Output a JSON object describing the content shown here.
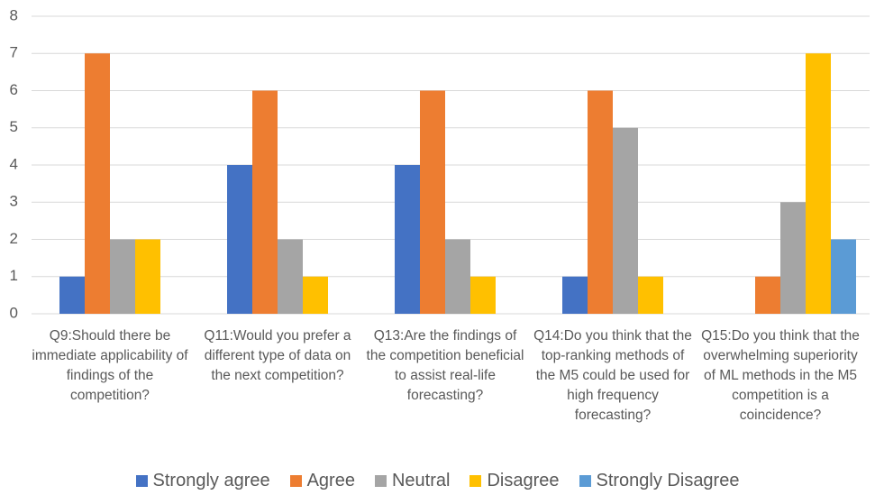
{
  "chart_data": {
    "type": "bar",
    "categories": [
      "Q9:Should there be immediate applicability of findings of the competition?",
      "Q11:Would you prefer a different type of data on the next competition?",
      "Q13:Are the findings of the competition beneficial to assist real-life forecasting?",
      "Q14:Do you think that the top-ranking methods of the M5 could be used for high frequency forecasting?",
      "Q15:Do you think that the overwhelming superiority of ML methods in the M5 competition is a coincidence?"
    ],
    "series": [
      {
        "name": "Strongly agree",
        "color": "#4472c4",
        "values": [
          1,
          4,
          4,
          1,
          0
        ]
      },
      {
        "name": "Agree",
        "color": "#ed7d31",
        "values": [
          7,
          6,
          6,
          6,
          1
        ]
      },
      {
        "name": "Neutral",
        "color": "#a5a5a5",
        "values": [
          2,
          2,
          2,
          5,
          3
        ]
      },
      {
        "name": "Disagree",
        "color": "#ffc000",
        "values": [
          2,
          1,
          1,
          1,
          7
        ]
      },
      {
        "name": "Strongly Disagree",
        "color": "#5b9bd5",
        "values": [
          0,
          0,
          0,
          0,
          2
        ]
      }
    ],
    "ylim": [
      0,
      8
    ],
    "yticks": [
      0,
      1,
      2,
      3,
      4,
      5,
      6,
      7,
      8
    ],
    "grid": true,
    "legend": "bottom"
  }
}
